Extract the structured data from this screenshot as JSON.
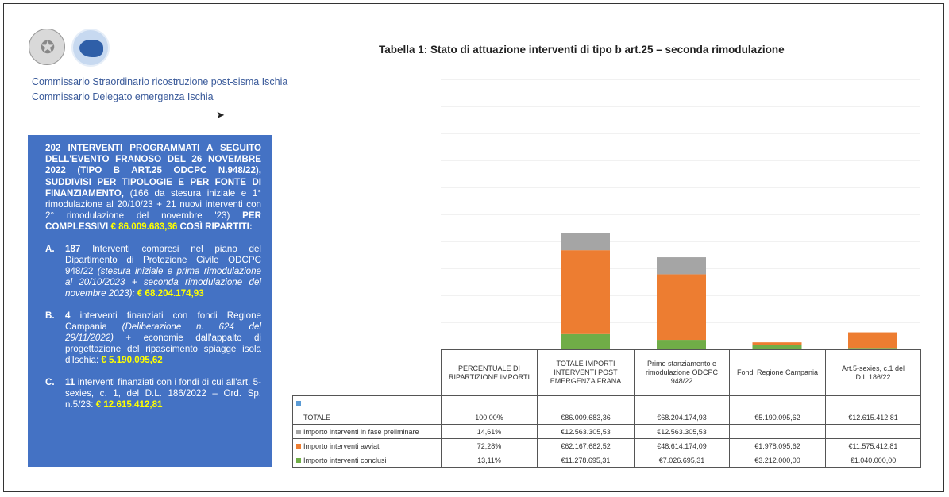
{
  "org": {
    "line1": "Commissario Straordinario ricostruzione post-sisma Ischia",
    "line2": "Commissario Delegato emergenza Ischia"
  },
  "summary": {
    "intro_bold": "202 INTERVENTI PROGRAMMATI A SEGUITO DELL'EVENTO FRANOSO DEL 26 NOVEMBRE 2022 (TIPO B ART.25 ODCPC N.948/22), SUDDIVISI PER TIPOLOGIE E PER FONTE DI FINANZIAMENTO,",
    "intro_text": " (166 da stesura iniziale e 1° rimodulazione al 20/10/23 + 21 nuovi interventi con 2° rimodulazione del novembre '23) ",
    "intro_bold2": "PER COMPLESSIVI ",
    "intro_amount": "€ 86.009.683,36",
    "intro_tail": " COSÌ RIPARTITI:",
    "items": [
      {
        "letter": "A.",
        "count": "187",
        "text": " Interventi compresi nel piano del Dipartimento di Protezione Civile ODCPC 948/22 ",
        "note": "(stesura iniziale e prima rimodulazione al 20/10/2023 + seconda rimodulazione del novembre 2023)",
        "sep": ": ",
        "amount": "€ 68.204.174,93"
      },
      {
        "letter": "B.",
        "count": "4",
        "text": " interventi finanziati con fondi Regione Campania ",
        "note": "(Deliberazione n. 624 del 29/11/2022)",
        "sep": " + economie dall'appalto di progettazione del ripascimento spiagge isola d'Ischia: ",
        "amount": "€ 5.190.095,62"
      },
      {
        "letter": "C.",
        "count": "11",
        "text": " interventi finanziati con i fondi di cui all'art. 5-sexies, c. 1, del D.L. 186/2022 – Ord. Sp. n.5/23: ",
        "note": "",
        "sep": "",
        "amount": "€ 12.615.412,81"
      }
    ]
  },
  "chart_data": {
    "type": "bar",
    "stacked": true,
    "title": "Tabella 1: Stato di attuazione interventi di tipo b art.25 – seconda rimodulazione",
    "categories": [
      "PERCENTUALE DI RIPARTIZIONE IMPORTI",
      "TOTALE IMPORTI INTERVENTI POST EMERGENZA FRANA",
      "Primo stanziamento e rimodulazione ODCPC 948/22",
      "Fondi Regione Campania",
      "Art.5-sexies, c.1 del D.L.186/22"
    ],
    "ylim": [
      0,
      200000000
    ],
    "grid": true,
    "series": [
      {
        "name": "Importo interventi conclusi",
        "color": "#70ad47",
        "values": [
          null,
          11278695.31,
          7026695.31,
          3212000,
          1040000
        ]
      },
      {
        "name": "Importo interventi avviati",
        "color": "#ed7d31",
        "values": [
          null,
          62167682.52,
          48614174.09,
          1978095.62,
          11575412.81
        ]
      },
      {
        "name": "Importo interventi in fase preliminare",
        "color": "#a5a5a5",
        "values": [
          null,
          12563305.53,
          12563305.53,
          null,
          null
        ]
      }
    ],
    "table": {
      "blank_label": "",
      "rows": [
        {
          "label": "",
          "swatch": "#5b9bd5",
          "cells": [
            "",
            "",
            "",
            "",
            ""
          ]
        },
        {
          "label": "TOTALE",
          "swatch": "",
          "cells": [
            "100,00%",
            "€86.009.683,36",
            "€68.204.174,93",
            "€5.190.095,62",
            "€12.615.412,81"
          ]
        },
        {
          "label": "Importo interventi in fase preliminare",
          "swatch": "#a5a5a5",
          "cells": [
            "14,61%",
            "€12.563.305,53",
            "€12.563.305,53",
            "",
            ""
          ]
        },
        {
          "label": "Importo interventi avviati",
          "swatch": "#ed7d31",
          "cells": [
            "72,28%",
            "€62.167.682,52",
            "€48.614.174,09",
            "€1.978.095,62",
            "€11.575.412,81"
          ]
        },
        {
          "label": "Importo interventi conclusi",
          "swatch": "#70ad47",
          "cells": [
            "13,11%",
            "€11.278.695,31",
            "€7.026.695,31",
            "€3.212.000,00",
            "€1.040.000,00"
          ]
        }
      ]
    }
  }
}
